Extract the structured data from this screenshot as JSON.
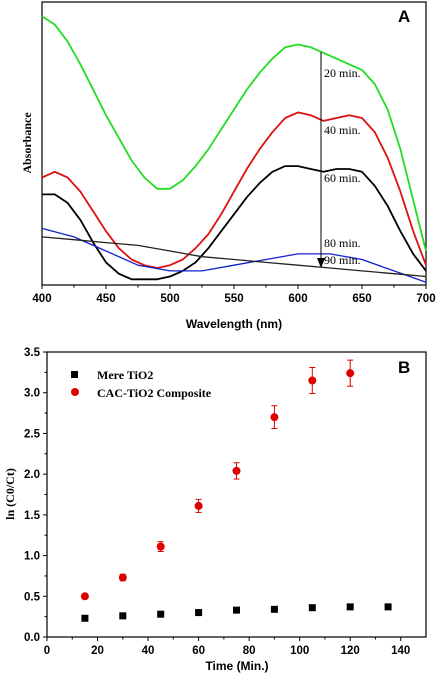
{
  "chart_data": [
    {
      "panel": "A",
      "type": "line",
      "xlabel": "Wavelength (nm)",
      "ylabel": "Absorbance",
      "xlim": [
        400,
        700
      ],
      "ylim": [
        0,
        1
      ],
      "x_ticks": [
        400,
        450,
        500,
        550,
        600,
        650,
        700
      ],
      "series": [
        {
          "name": "20 min.",
          "color": "#22dd22",
          "x": [
            400,
            410,
            420,
            430,
            440,
            450,
            460,
            470,
            480,
            490,
            500,
            510,
            520,
            530,
            540,
            550,
            560,
            570,
            580,
            590,
            600,
            610,
            620,
            630,
            640,
            650,
            660,
            670,
            680,
            690,
            700
          ],
          "y": [
            0.95,
            0.92,
            0.86,
            0.78,
            0.69,
            0.6,
            0.52,
            0.44,
            0.38,
            0.34,
            0.34,
            0.37,
            0.42,
            0.48,
            0.55,
            0.62,
            0.69,
            0.75,
            0.8,
            0.84,
            0.85,
            0.84,
            0.82,
            0.8,
            0.78,
            0.76,
            0.71,
            0.62,
            0.48,
            0.3,
            0.12
          ]
        },
        {
          "name": "40 min.",
          "color": "#dd1111",
          "x": [
            400,
            410,
            420,
            430,
            440,
            450,
            460,
            470,
            480,
            490,
            500,
            510,
            520,
            530,
            540,
            550,
            560,
            570,
            580,
            590,
            600,
            610,
            620,
            630,
            640,
            650,
            660,
            670,
            680,
            690,
            700
          ],
          "y": [
            0.38,
            0.4,
            0.38,
            0.33,
            0.26,
            0.19,
            0.13,
            0.09,
            0.07,
            0.06,
            0.07,
            0.09,
            0.13,
            0.18,
            0.25,
            0.33,
            0.41,
            0.48,
            0.54,
            0.59,
            0.61,
            0.6,
            0.58,
            0.59,
            0.6,
            0.59,
            0.54,
            0.45,
            0.33,
            0.19,
            0.07
          ]
        },
        {
          "name": "60 min.",
          "color": "#000000",
          "x": [
            400,
            410,
            420,
            430,
            440,
            450,
            460,
            470,
            480,
            490,
            500,
            510,
            520,
            530,
            540,
            550,
            560,
            570,
            580,
            590,
            600,
            610,
            620,
            630,
            640,
            650,
            660,
            670,
            680,
            690,
            700
          ],
          "y": [
            0.32,
            0.32,
            0.29,
            0.23,
            0.15,
            0.08,
            0.04,
            0.02,
            0.02,
            0.02,
            0.03,
            0.05,
            0.08,
            0.13,
            0.19,
            0.25,
            0.31,
            0.36,
            0.4,
            0.42,
            0.42,
            0.41,
            0.4,
            0.41,
            0.41,
            0.4,
            0.35,
            0.28,
            0.19,
            0.11,
            0.05
          ]
        },
        {
          "name": "80 min.",
          "color": "#1122cc",
          "x": [
            400,
            425,
            450,
            475,
            500,
            525,
            550,
            575,
            600,
            625,
            650,
            675,
            700
          ],
          "y": [
            0.2,
            0.17,
            0.12,
            0.07,
            0.05,
            0.05,
            0.07,
            0.09,
            0.11,
            0.11,
            0.09,
            0.05,
            0.01
          ]
        },
        {
          "name": "90 min.",
          "color": "#222222",
          "x": [
            400,
            425,
            450,
            475,
            500,
            525,
            550,
            575,
            600,
            625,
            650,
            675,
            700
          ],
          "y": [
            0.17,
            0.16,
            0.15,
            0.14,
            0.12,
            0.1,
            0.09,
            0.08,
            0.07,
            0.06,
            0.05,
            0.04,
            0.03
          ]
        }
      ],
      "annotations": [
        "20 min.",
        "40 min.",
        "60 min.",
        "80 min.",
        "90 min."
      ]
    },
    {
      "panel": "B",
      "type": "scatter",
      "xlabel": "Time (Min.)",
      "ylabel": "ln (C0/Ct)",
      "xlim": [
        0,
        150
      ],
      "ylim": [
        0,
        3.5
      ],
      "x_ticks": [
        0,
        20,
        40,
        60,
        80,
        100,
        120,
        140
      ],
      "y_ticks": [
        "0.0",
        "0.5",
        "1.0",
        "1.5",
        "2.0",
        "2.5",
        "3.0",
        "3.5"
      ],
      "series": [
        {
          "name": "Mere TiO2",
          "marker": "square",
          "color": "#000000",
          "x": [
            15,
            30,
            45,
            60,
            75,
            90,
            105,
            120,
            135
          ],
          "y": [
            0.23,
            0.26,
            0.28,
            0.3,
            0.33,
            0.34,
            0.36,
            0.37,
            0.37
          ]
        },
        {
          "name": "CAC-TiO2 Composite",
          "marker": "circle",
          "color": "#dd0000",
          "x": [
            15,
            30,
            45,
            60,
            75,
            90,
            105,
            120
          ],
          "y": [
            0.5,
            0.73,
            1.11,
            1.61,
            2.04,
            2.7,
            3.15,
            3.24
          ],
          "err": [
            0.02,
            0.04,
            0.06,
            0.08,
            0.1,
            0.14,
            0.16,
            0.16
          ]
        }
      ]
    }
  ]
}
